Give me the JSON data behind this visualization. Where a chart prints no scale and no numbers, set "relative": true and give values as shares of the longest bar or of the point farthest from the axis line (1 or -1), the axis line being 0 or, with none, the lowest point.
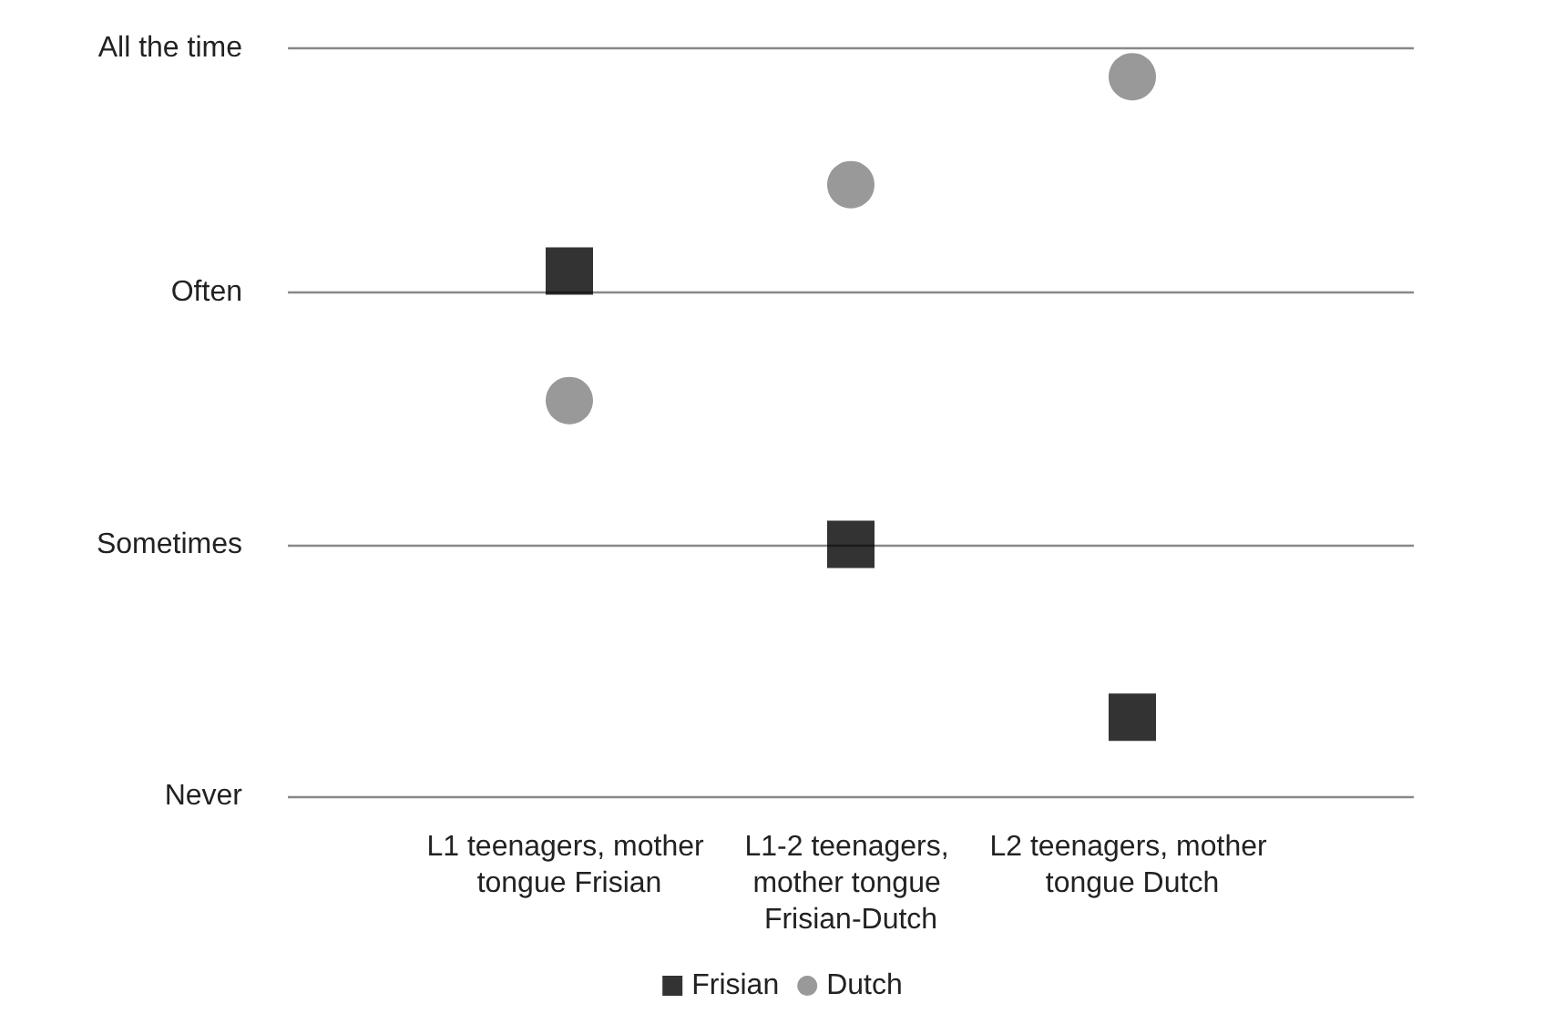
{
  "chart_data": {
    "type": "scatter",
    "relative": true,
    "categories": [
      "L1 teenagers, mother tongue Frisian",
      "L1-2 teenagers, mother tongue Frisian-Dutch",
      "L2 teenagers, mother tongue Dutch"
    ],
    "series": [
      {
        "name": "Frisian",
        "color": "#000000",
        "marker": "square",
        "values": [
          0.73,
          0.35,
          0.11
        ]
      },
      {
        "name": "Dutch",
        "color": "#808080",
        "marker": "circle",
        "values": [
          0.55,
          0.85,
          1
        ]
      }
    ],
    "ref_lines": [
      {
        "axis": "y",
        "value": 0,
        "label": "Never",
        "color": "#888888"
      },
      {
        "axis": "y",
        "value": 0.348,
        "label": "Sometimes",
        "color": "#888888"
      },
      {
        "axis": "y",
        "value": 0.697,
        "label": "Often",
        "color": "#888888"
      },
      {
        "axis": "y",
        "value": 1.04,
        "label": "All the time",
        "color": "#888888"
      }
    ],
    "legend": "bottom"
  }
}
